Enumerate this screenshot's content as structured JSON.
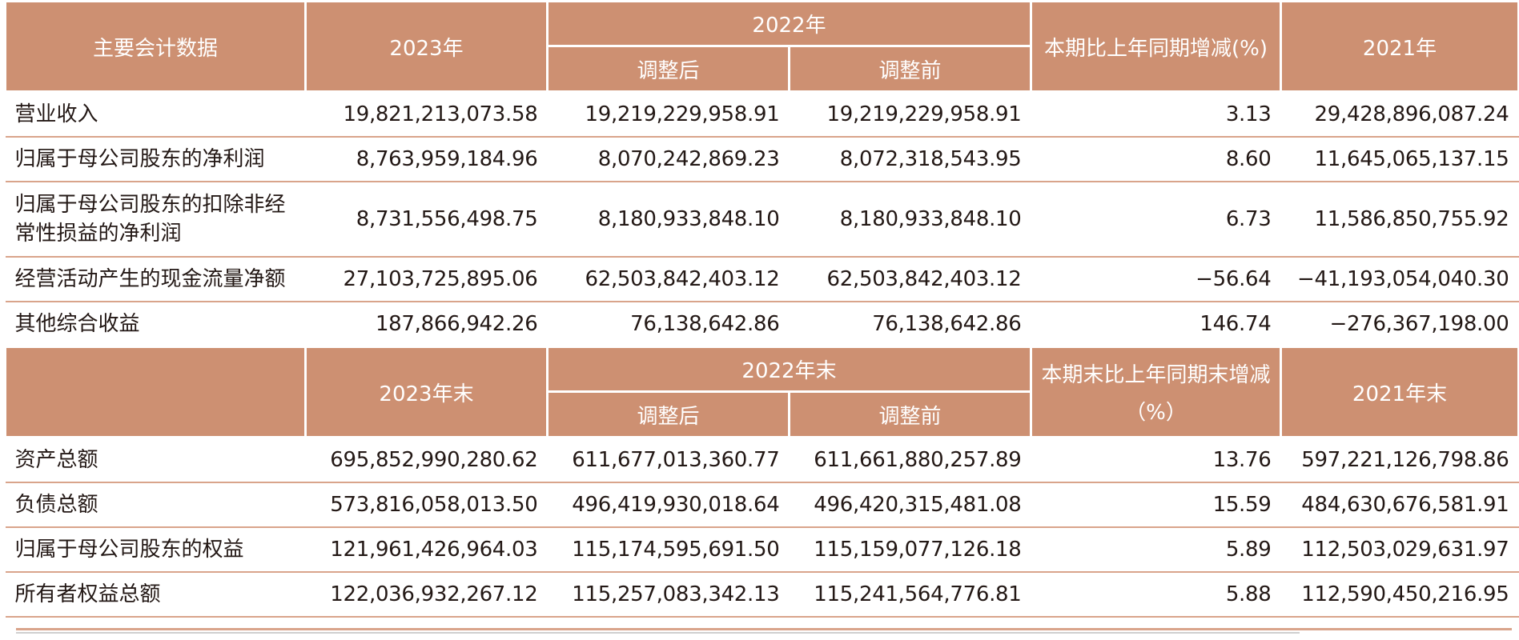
{
  "colors": {
    "header_bg": "#cd9072",
    "header_text": "#ffffff",
    "rule": "#d9a48b",
    "text": "#231815"
  },
  "header1": {
    "label": "主要会计数据",
    "y2023": "2023年",
    "y2022": "2022年",
    "adjusted_after": "调整后",
    "adjusted_before": "调整前",
    "change": "本期比上年同期增减(%)",
    "y2021": "2021年"
  },
  "rows1": [
    {
      "label": "营业收入",
      "v2023": "19,821,213,073.58",
      "v2022_after": "19,219,229,958.91",
      "v2022_before": "19,219,229,958.91",
      "change": "3.13",
      "v2021": "29,428,896,087.24"
    },
    {
      "label": "归属于母公司股东的净利润",
      "v2023": "8,763,959,184.96",
      "v2022_after": "8,070,242,869.23",
      "v2022_before": "8,072,318,543.95",
      "change": "8.60",
      "v2021": "11,645,065,137.15"
    },
    {
      "label_line1": "归属于母公司股东的扣除非经",
      "label_line2": "常性损益的净利润",
      "v2023": "8,731,556,498.75",
      "v2022_after": "8,180,933,848.10",
      "v2022_before": "8,180,933,848.10",
      "change": "6.73",
      "v2021": "11,586,850,755.92"
    },
    {
      "label": "经营活动产生的现金流量净额",
      "v2023": "27,103,725,895.06",
      "v2022_after": "62,503,842,403.12",
      "v2022_before": "62,503,842,403.12",
      "change": "−56.64",
      "v2021": "−41,193,054,040.30"
    },
    {
      "label": "其他综合收益",
      "v2023": "187,866,942.26",
      "v2022_after": "76,138,642.86",
      "v2022_before": "76,138,642.86",
      "change": "146.74",
      "v2021": "−276,367,198.00"
    }
  ],
  "header2": {
    "label": "",
    "y2023": "2023年末",
    "y2022": "2022年末",
    "adjusted_after": "调整后",
    "adjusted_before": "调整前",
    "change_line1": "本期末比上年同期末增减",
    "change_line2": "（%）",
    "y2021": "2021年末"
  },
  "rows2": [
    {
      "label": "资产总额",
      "v2023": "695,852,990,280.62",
      "v2022_after": "611,677,013,360.77",
      "v2022_before": "611,661,880,257.89",
      "change": "13.76",
      "v2021": "597,221,126,798.86"
    },
    {
      "label": "负债总额",
      "v2023": "573,816,058,013.50",
      "v2022_after": "496,419,930,018.64",
      "v2022_before": "496,420,315,481.08",
      "change": "15.59",
      "v2021": "484,630,676,581.91"
    },
    {
      "label": "归属于母公司股东的权益",
      "v2023": "121,961,426,964.03",
      "v2022_after": "115,174,595,691.50",
      "v2022_before": "115,159,077,126.18",
      "change": "5.89",
      "v2021": "112,503,029,631.97"
    },
    {
      "label": "所有者权益总额",
      "v2023": "122,036,932,267.12",
      "v2022_after": "115,257,083,342.13",
      "v2022_before": "115,241,564,776.81",
      "change": "5.88",
      "v2021": "112,590,450,216.95"
    }
  ]
}
